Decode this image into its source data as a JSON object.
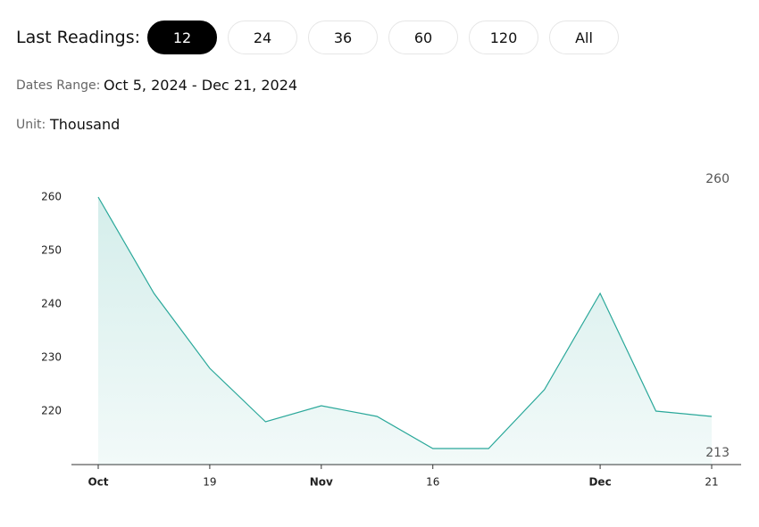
{
  "controls": {
    "label": "Last Readings:",
    "options": [
      "12",
      "24",
      "36",
      "60",
      "120",
      "All"
    ],
    "selected_index": 0
  },
  "dates_range": {
    "label": "Dates Range:",
    "value": "Oct 5, 2024 - Dec 21, 2024"
  },
  "unit": {
    "label": "Unit:",
    "value": "Thousand"
  },
  "chart_data": {
    "type": "area",
    "categories": [
      "Oct",
      null,
      "19",
      null,
      "Nov",
      null,
      "16",
      null,
      null,
      "Dec",
      null,
      "21"
    ],
    "values": [
      260,
      242,
      228,
      218,
      221,
      219,
      213,
      213,
      224,
      242,
      220,
      219
    ],
    "color": "#2aa89a",
    "ylim": [
      210,
      263
    ],
    "yticks": [
      220,
      230,
      240,
      250,
      260
    ],
    "range_labels": {
      "max": 260,
      "min": 213
    }
  }
}
